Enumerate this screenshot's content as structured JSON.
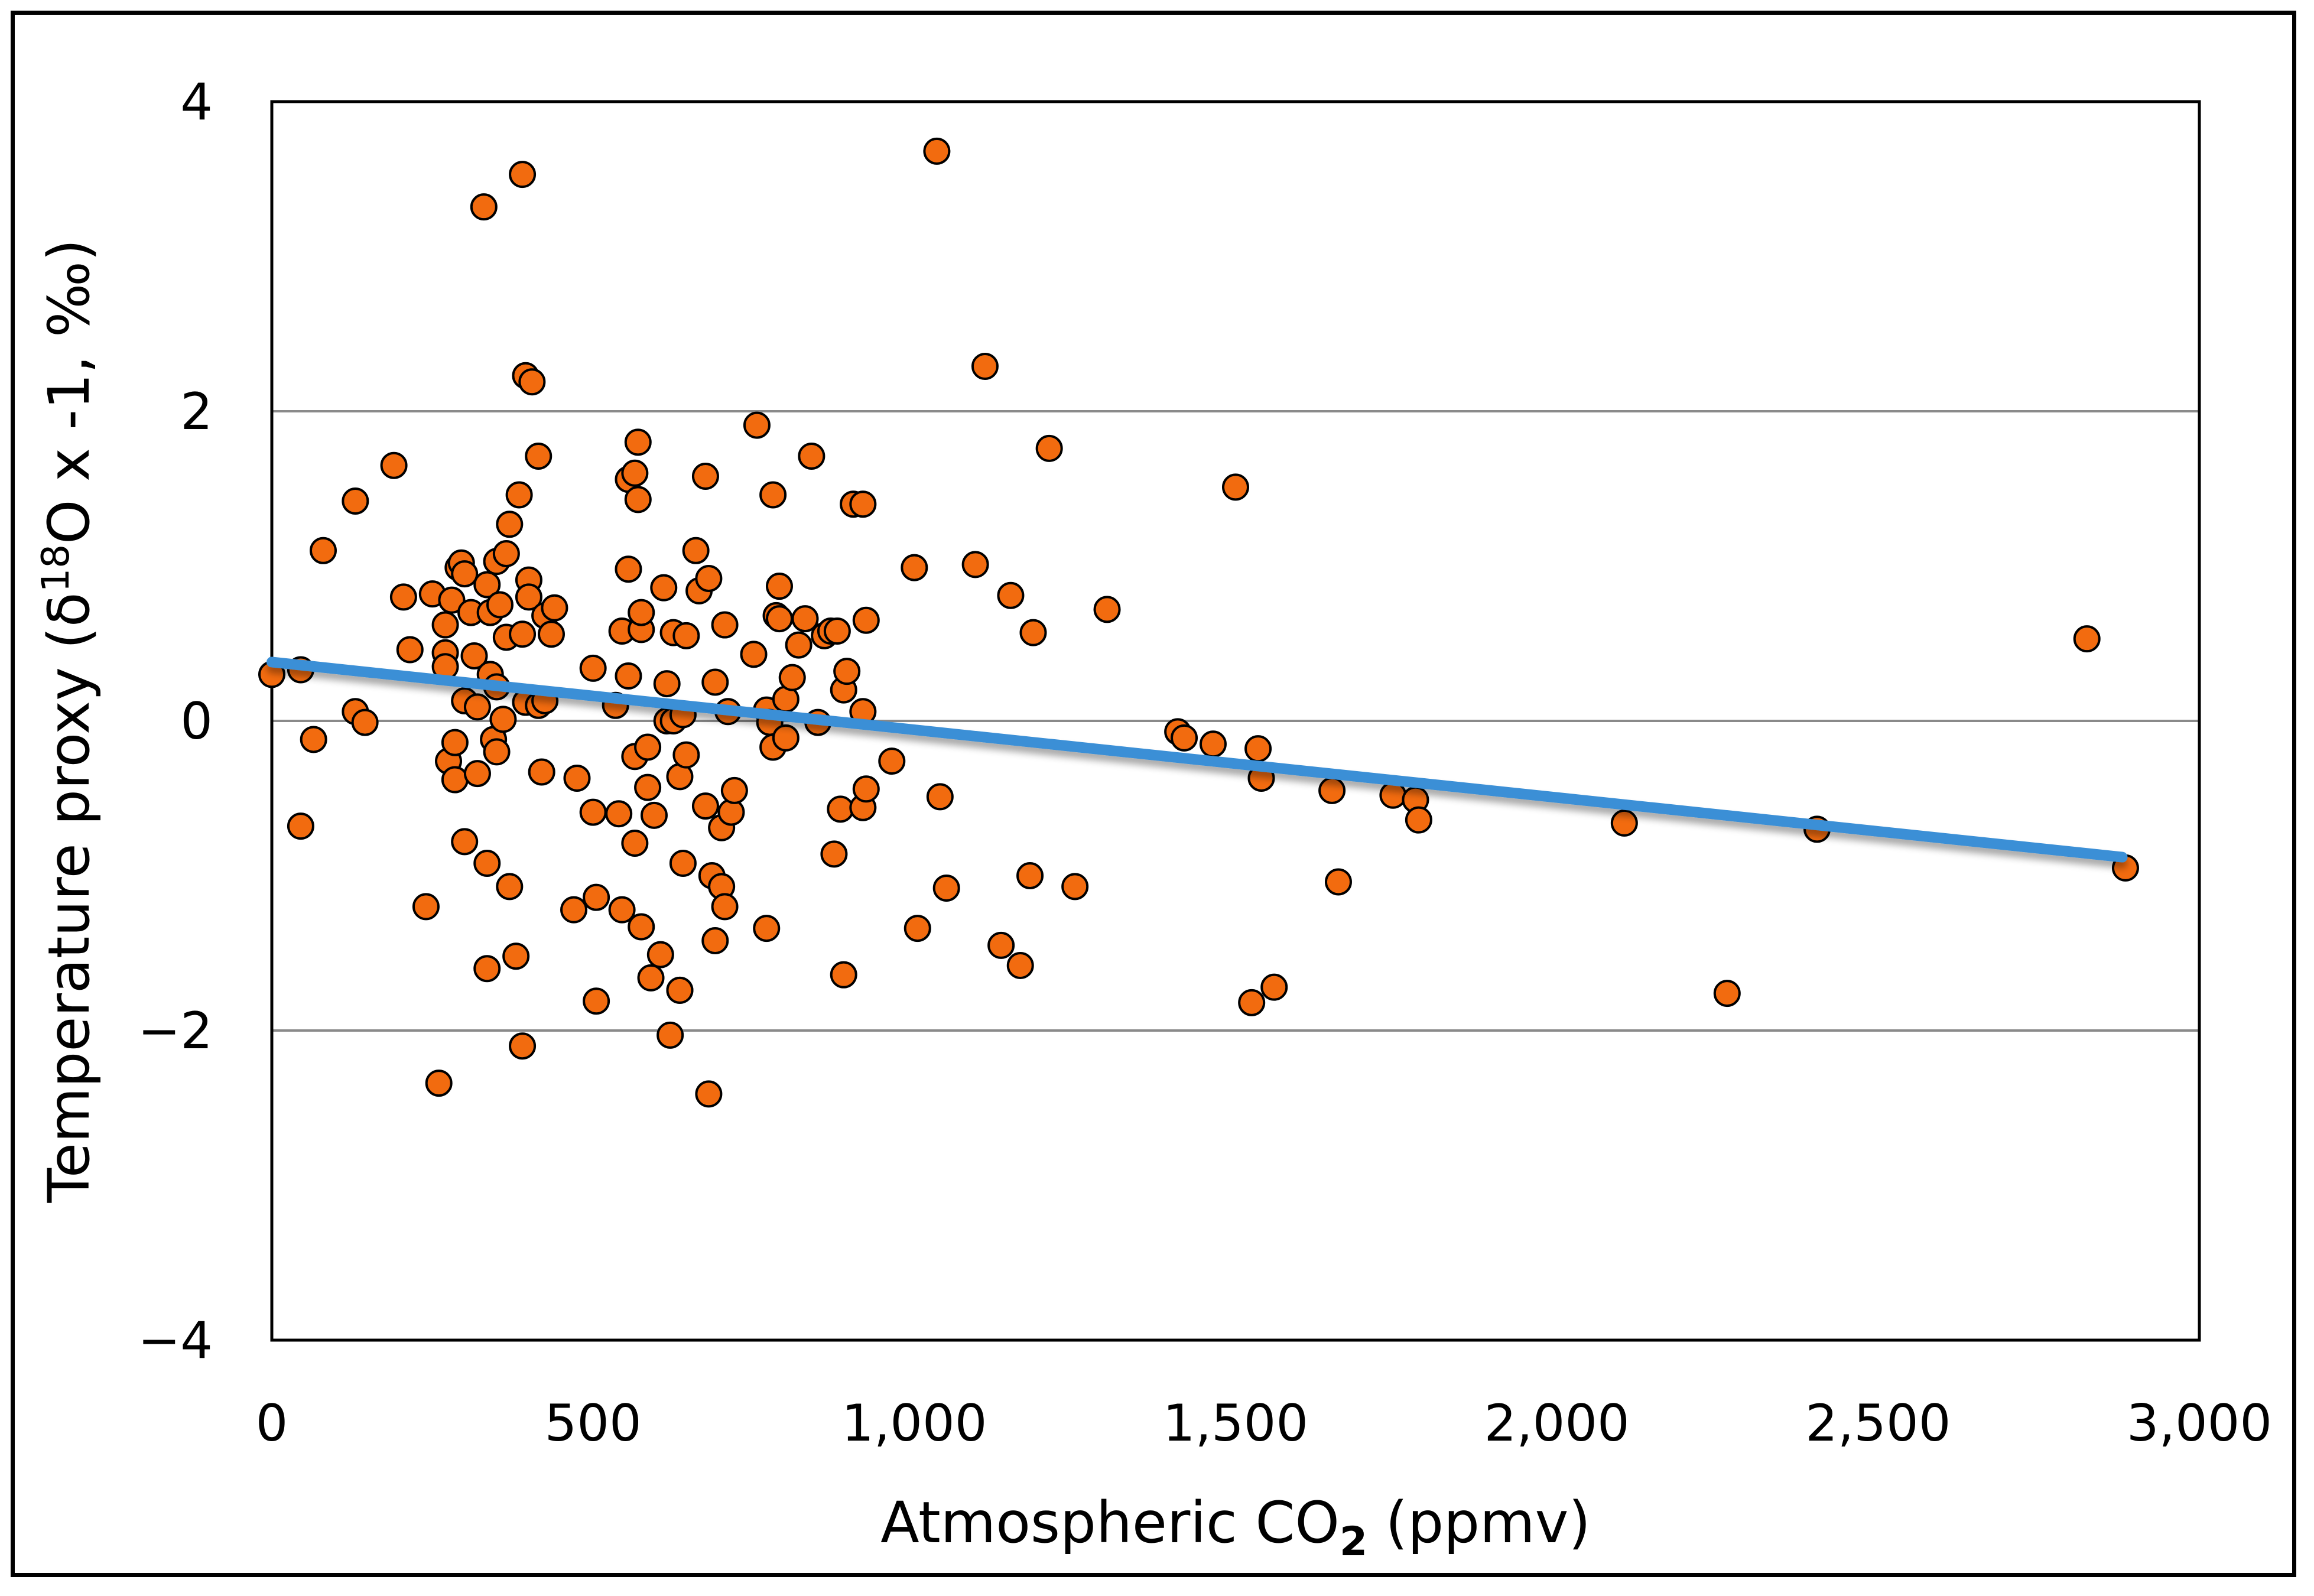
{
  "chart_data": {
    "type": "scatter",
    "title": "",
    "xlabel": "Atmospheric CO",
    "xlabel_sub": "2",
    "xlabel_unit": " (ppmv)",
    "ylabel_pre": "Temperature proxy (δ",
    "ylabel_sup": "18",
    "ylabel_post": "O x -1, ‰)",
    "xlim": [
      0,
      3000
    ],
    "ylim": [
      -4,
      4
    ],
    "xticks": [
      0,
      500,
      1000,
      1500,
      2000,
      2500,
      3000
    ],
    "xtick_labels": [
      "0",
      "500",
      "1,000",
      "1,500",
      "2,000",
      "2,500",
      "3,000"
    ],
    "yticks": [
      -4,
      -2,
      0,
      2,
      4
    ],
    "ytick_labels": [
      "−4",
      "−2",
      "0",
      "2",
      "4"
    ],
    "gridlines_y": [
      -2,
      0,
      2
    ],
    "marker_color": "#F26B0F",
    "marker_edge": "#000000",
    "trend_color": "#3A8FD6",
    "trendline": {
      "x": [
        0,
        2880
      ],
      "y": [
        0.38,
        -0.88
      ]
    },
    "points": [
      [
        0,
        0.3
      ],
      [
        45,
        0.33
      ],
      [
        45,
        -0.68
      ],
      [
        65,
        -0.12
      ],
      [
        80,
        1.1
      ],
      [
        130,
        1.42
      ],
      [
        130,
        0.06
      ],
      [
        145,
        -0.01
      ],
      [
        190,
        1.65
      ],
      [
        205,
        0.8
      ],
      [
        215,
        0.46
      ],
      [
        240,
        -1.2
      ],
      [
        250,
        0.82
      ],
      [
        260,
        -2.34
      ],
      [
        270,
        0.62
      ],
      [
        270,
        0.44
      ],
      [
        270,
        0.35
      ],
      [
        275,
        -0.26
      ],
      [
        280,
        0.78
      ],
      [
        285,
        -0.14
      ],
      [
        285,
        -0.38
      ],
      [
        290,
        0.99
      ],
      [
        295,
        1.02
      ],
      [
        300,
        0.95
      ],
      [
        300,
        0.13
      ],
      [
        300,
        -0.78
      ],
      [
        310,
        0.7
      ],
      [
        315,
        0.42
      ],
      [
        320,
        -0.34
      ],
      [
        320,
        0.09
      ],
      [
        330,
        3.32
      ],
      [
        335,
        0.88
      ],
      [
        335,
        -1.6
      ],
      [
        335,
        -0.92
      ],
      [
        340,
        0.3
      ],
      [
        340,
        0.7
      ],
      [
        345,
        -0.12
      ],
      [
        350,
        1.03
      ],
      [
        350,
        0.22
      ],
      [
        350,
        -0.2
      ],
      [
        355,
        0.75
      ],
      [
        360,
        0.01
      ],
      [
        365,
        1.08
      ],
      [
        365,
        0.54
      ],
      [
        370,
        1.27
      ],
      [
        370,
        -1.07
      ],
      [
        380,
        -1.52
      ],
      [
        385,
        1.46
      ],
      [
        390,
        0.56
      ],
      [
        390,
        3.53
      ],
      [
        390,
        -2.1
      ],
      [
        395,
        2.23
      ],
      [
        395,
        0.12
      ],
      [
        400,
        0.91
      ],
      [
        400,
        0.8
      ],
      [
        405,
        2.19
      ],
      [
        415,
        0.1
      ],
      [
        415,
        1.71
      ],
      [
        420,
        -0.33
      ],
      [
        425,
        0.13
      ],
      [
        425,
        0.68
      ],
      [
        435,
        0.56
      ],
      [
        440,
        0.73
      ],
      [
        470,
        -1.22
      ],
      [
        475,
        -0.37
      ],
      [
        500,
        0.34
      ],
      [
        500,
        -0.59
      ],
      [
        505,
        -1.14
      ],
      [
        505,
        -1.81
      ],
      [
        535,
        0.1
      ],
      [
        540,
        -0.6
      ],
      [
        545,
        -1.22
      ],
      [
        545,
        0.58
      ],
      [
        555,
        0.29
      ],
      [
        555,
        0.98
      ],
      [
        555,
        1.56
      ],
      [
        565,
        -0.23
      ],
      [
        565,
        -0.79
      ],
      [
        565,
        1.6
      ],
      [
        570,
        1.43
      ],
      [
        570,
        1.8
      ],
      [
        575,
        0.59
      ],
      [
        575,
        0.7
      ],
      [
        575,
        -1.33
      ],
      [
        585,
        -0.43
      ],
      [
        585,
        -0.17
      ],
      [
        590,
        -1.66
      ],
      [
        595,
        -0.61
      ],
      [
        605,
        -1.51
      ],
      [
        610,
        0.86
      ],
      [
        615,
        0.0
      ],
      [
        615,
        0.24
      ],
      [
        620,
        -2.03
      ],
      [
        625,
        0.57
      ],
      [
        625,
        0.0
      ],
      [
        635,
        -1.74
      ],
      [
        635,
        -1.74
      ],
      [
        635,
        -0.36
      ],
      [
        640,
        0.04
      ],
      [
        640,
        -0.92
      ],
      [
        645,
        -0.22
      ],
      [
        645,
        0.55
      ],
      [
        660,
        1.1
      ],
      [
        665,
        0.84
      ],
      [
        675,
        1.58
      ],
      [
        675,
        -0.55
      ],
      [
        680,
        0.92
      ],
      [
        680,
        -2.41
      ],
      [
        685,
        -1.0
      ],
      [
        690,
        0.25
      ],
      [
        690,
        -1.42
      ],
      [
        700,
        -0.69
      ],
      [
        700,
        -1.07
      ],
      [
        705,
        0.62
      ],
      [
        705,
        -1.2
      ],
      [
        710,
        0.06
      ],
      [
        715,
        -0.59
      ],
      [
        720,
        -0.45
      ],
      [
        750,
        0.43
      ],
      [
        755,
        1.91
      ],
      [
        770,
        -1.34
      ],
      [
        770,
        0.07
      ],
      [
        775,
        -0.01
      ],
      [
        780,
        1.46
      ],
      [
        780,
        -0.17
      ],
      [
        785,
        0.68
      ],
      [
        790,
        0.66
      ],
      [
        790,
        0.87
      ],
      [
        800,
        -0.11
      ],
      [
        800,
        0.14
      ],
      [
        810,
        0.28
      ],
      [
        820,
        0.49
      ],
      [
        830,
        0.66
      ],
      [
        840,
        1.71
      ],
      [
        850,
        -0.01
      ],
      [
        860,
        0.55
      ],
      [
        870,
        0.58
      ],
      [
        875,
        -0.86
      ],
      [
        880,
        0.58
      ],
      [
        885,
        -0.57
      ],
      [
        890,
        -1.64
      ],
      [
        890,
        0.2
      ],
      [
        895,
        0.32
      ],
      [
        905,
        1.4
      ],
      [
        920,
        1.4
      ],
      [
        920,
        -0.56
      ],
      [
        920,
        0.06
      ],
      [
        925,
        -0.44
      ],
      [
        925,
        0.65
      ],
      [
        965,
        -0.26
      ],
      [
        1000,
        0.99
      ],
      [
        1005,
        -1.34
      ],
      [
        1035,
        3.68
      ],
      [
        1040,
        -0.49
      ],
      [
        1050,
        -1.08
      ],
      [
        1095,
        1.01
      ],
      [
        1110,
        2.29
      ],
      [
        1135,
        -1.45
      ],
      [
        1150,
        0.81
      ],
      [
        1165,
        -1.58
      ],
      [
        1180,
        -1.0
      ],
      [
        1185,
        0.57
      ],
      [
        1210,
        1.76
      ],
      [
        1250,
        -1.07
      ],
      [
        1300,
        0.72
      ],
      [
        1410,
        -0.07
      ],
      [
        1420,
        -0.11
      ],
      [
        1465,
        -0.15
      ],
      [
        1500,
        1.51
      ],
      [
        1525,
        -1.82
      ],
      [
        1535,
        -0.18
      ],
      [
        1540,
        -0.37
      ],
      [
        1560,
        -1.72
      ],
      [
        1650,
        -0.45
      ],
      [
        1660,
        -1.04
      ],
      [
        1745,
        -0.48
      ],
      [
        1780,
        -0.51
      ],
      [
        1785,
        -0.64
      ],
      [
        2105,
        -0.66
      ],
      [
        2265,
        -1.76
      ],
      [
        2405,
        -0.7
      ],
      [
        2825,
        0.53
      ],
      [
        2885,
        -0.95
      ]
    ]
  }
}
